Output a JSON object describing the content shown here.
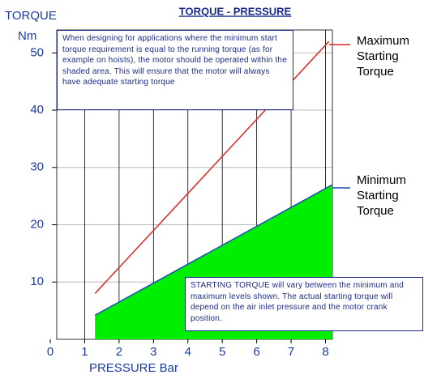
{
  "chart_data": {
    "type": "line",
    "title": "TORQUE - PRESSURE",
    "y_label_lines": [
      "TORQUE",
      "Nm"
    ],
    "x_label": "PRESSURE Bar",
    "xlim": [
      0,
      8.2
    ],
    "ylim": [
      0,
      54
    ],
    "xticks": [
      0,
      1,
      2,
      3,
      4,
      5,
      6,
      7,
      8
    ],
    "yticks": [
      10,
      20,
      30,
      40,
      50
    ],
    "grid": true,
    "series": [
      {
        "name": "Maximum Starting Torque",
        "color": "#e02020",
        "x": [
          1.3,
          8.1
        ],
        "values": [
          8,
          52
        ]
      },
      {
        "name": "Minimum Starting Torque",
        "color": "#1a4fb0",
        "fill_color": "#00ee00",
        "x": [
          1.3,
          8.2
        ],
        "values": [
          4.2,
          27
        ]
      }
    ],
    "annotations": [
      "When designing for applications where the minimum start torque requirement is equal to the running torque (as for example on hoists), the motor should be operated within the shaded area. This will ensure that the motor will always have adequate starting torque",
      "STARTING TORQUE will vary between the minimum and maximum levels shown. The actual starting torque will depend on the air inlet pressure and the motor crank position."
    ]
  }
}
